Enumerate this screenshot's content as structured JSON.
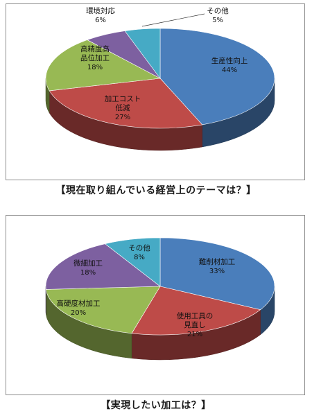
{
  "captions": [
    "【現在取り組んでいる経営上のテーマは？】",
    "【実現したい加工は？】"
  ],
  "chart_data": [
    {
      "type": "pie",
      "title": "【現在取り組んでいる経営上のテーマは？】",
      "slices": [
        {
          "label": "生産性向上",
          "value": 44,
          "value_label": "44%",
          "color": "#4a7ebb"
        },
        {
          "label": "加工コスト低減",
          "value": 27,
          "value_label": "27%",
          "color": "#be4b48"
        },
        {
          "label": "高精度高品位加工",
          "value": 18,
          "value_label": "18%",
          "color": "#98b954"
        },
        {
          "label": "環境対応",
          "value": 6,
          "value_label": "6%",
          "color": "#7d60a0"
        },
        {
          "label": "その他",
          "value": 5,
          "value_label": "5%",
          "color": "#46aac5"
        }
      ],
      "legend": "none",
      "style": "3d-pie"
    },
    {
      "type": "pie",
      "title": "【実現したい加工は？】",
      "slices": [
        {
          "label": "難削材加工",
          "value": 33,
          "value_label": "33%",
          "color": "#4a7ebb"
        },
        {
          "label": "使用工具の見直し",
          "value": 21,
          "value_label": "21%",
          "color": "#be4b48"
        },
        {
          "label": "高硬度材加工",
          "value": 20,
          "value_label": "20%",
          "color": "#98b954"
        },
        {
          "label": "微細加工",
          "value": 18,
          "value_label": "18%",
          "color": "#7d60a0"
        },
        {
          "label": "その他",
          "value": 8,
          "value_label": "8%",
          "color": "#46aac5"
        }
      ],
      "legend": "none",
      "style": "3d-pie"
    }
  ]
}
